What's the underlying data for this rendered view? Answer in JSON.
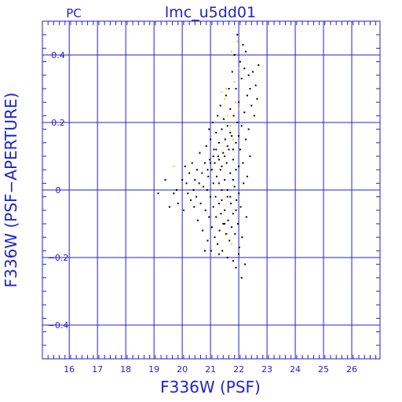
{
  "chart_data": {
    "type": "scatter",
    "title": "lmc_u5dd01",
    "corner_label": "PC",
    "xlabel": "F336W (PSF)",
    "ylabel": "F336W (PSF−APERTURE)",
    "xlim": [
      15.05,
      27.0
    ],
    "ylim": [
      -0.5,
      0.5
    ],
    "xticks": [
      16,
      17,
      18,
      19,
      20,
      21,
      22,
      23,
      24,
      25,
      26
    ],
    "yticks": [
      -0.4,
      -0.2,
      0,
      0.2,
      0.4
    ],
    "ytick_labels": [
      "−0.4",
      "−0.2",
      "0",
      "0.2",
      "0.4"
    ],
    "grid": true,
    "colors": {
      "axes": "#2222cc",
      "points": "#000000",
      "highlight": "#f0d000",
      "background": "#ffffff"
    },
    "series": [
      {
        "color": "#000000",
        "points": [
          [
            19.15,
            -0.01
          ],
          [
            19.4,
            0.03
          ],
          [
            19.55,
            -0.05
          ],
          [
            19.7,
            -0.01
          ],
          [
            19.8,
            0.0
          ],
          [
            19.85,
            -0.04
          ],
          [
            20.0,
            0.03
          ],
          [
            20.05,
            -0.06
          ],
          [
            20.1,
            0.07
          ],
          [
            20.15,
            0.02
          ],
          [
            20.2,
            -0.01
          ],
          [
            20.25,
            0.05
          ],
          [
            20.3,
            -0.03
          ],
          [
            20.35,
            0.08
          ],
          [
            20.4,
            0.0
          ],
          [
            20.42,
            -0.05
          ],
          [
            20.45,
            0.03
          ],
          [
            20.5,
            -0.02
          ],
          [
            20.52,
            0.06
          ],
          [
            20.55,
            -0.09
          ],
          [
            20.6,
            0.02
          ],
          [
            20.62,
            0.11
          ],
          [
            20.65,
            -0.04
          ],
          [
            20.7,
            0.05
          ],
          [
            20.72,
            -0.12
          ],
          [
            20.75,
            0.01
          ],
          [
            20.8,
            0.08
          ],
          [
            20.82,
            -0.06
          ],
          [
            20.85,
            0.13
          ],
          [
            20.88,
            0.0
          ],
          [
            20.9,
            -0.15
          ],
          [
            20.92,
            0.04
          ],
          [
            20.95,
            0.18
          ],
          [
            20.95,
            -0.08
          ],
          [
            20.97,
            0.09
          ],
          [
            21.0,
            -0.02
          ],
          [
            21.0,
            0.15
          ],
          [
            21.02,
            -0.18
          ],
          [
            21.05,
            0.06
          ],
          [
            21.05,
            -0.11
          ],
          [
            21.08,
            0.2
          ],
          [
            21.1,
            0.02
          ],
          [
            21.1,
            -0.05
          ],
          [
            21.12,
            0.12
          ],
          [
            21.15,
            -0.14
          ],
          [
            21.15,
            0.08
          ],
          [
            21.18,
            -0.02
          ],
          [
            21.2,
            0.17
          ],
          [
            21.2,
            -0.08
          ],
          [
            21.22,
            0.04
          ],
          [
            21.25,
            0.22
          ],
          [
            21.25,
            -0.16
          ],
          [
            21.27,
            0.1
          ],
          [
            21.3,
            -0.04
          ],
          [
            21.3,
            0.14
          ],
          [
            21.32,
            -0.12
          ],
          [
            21.35,
            0.06
          ],
          [
            21.35,
            0.25
          ],
          [
            21.37,
            -0.07
          ],
          [
            21.4,
            0.18
          ],
          [
            21.4,
            0.0
          ],
          [
            21.42,
            -0.18
          ],
          [
            21.45,
            0.11
          ],
          [
            21.45,
            -0.1
          ],
          [
            21.47,
            0.21
          ],
          [
            21.5,
            0.03
          ],
          [
            21.5,
            -0.06
          ],
          [
            21.52,
            0.15
          ],
          [
            21.55,
            0.28
          ],
          [
            21.55,
            -0.13
          ],
          [
            21.57,
            0.08
          ],
          [
            21.6,
            -0.02
          ],
          [
            21.6,
            0.19
          ],
          [
            21.62,
            -0.09
          ],
          [
            21.65,
            0.12
          ],
          [
            21.65,
            0.3
          ],
          [
            21.67,
            -0.15
          ],
          [
            21.7,
            0.05
          ],
          [
            21.7,
            0.24
          ],
          [
            21.72,
            -0.04
          ],
          [
            21.75,
            0.16
          ],
          [
            21.75,
            -0.11
          ],
          [
            21.77,
            0.35
          ],
          [
            21.8,
            0.09
          ],
          [
            21.8,
            -0.07
          ],
          [
            21.82,
            0.22
          ],
          [
            21.85,
            0.01
          ],
          [
            21.85,
            0.4
          ],
          [
            21.87,
            -0.13
          ],
          [
            21.9,
            0.14
          ],
          [
            21.9,
            0.3
          ],
          [
            21.92,
            -0.03
          ],
          [
            21.95,
            0.2
          ],
          [
            21.95,
            0.46
          ],
          [
            21.97,
            -0.1
          ],
          [
            22.0,
            0.07
          ],
          [
            22.0,
            0.26
          ],
          [
            22.02,
            -0.17
          ],
          [
            22.05,
            0.12
          ],
          [
            22.05,
            0.38
          ],
          [
            22.07,
            -0.05
          ],
          [
            22.1,
            0.19
          ],
          [
            22.1,
            0.33
          ],
          [
            22.12,
            -0.14
          ],
          [
            22.15,
            0.08
          ],
          [
            22.15,
            0.43
          ],
          [
            22.17,
            0.02
          ],
          [
            22.2,
            0.23
          ],
          [
            22.2,
            0.36
          ],
          [
            22.22,
            -0.22
          ],
          [
            22.25,
            0.15
          ],
          [
            22.25,
            0.41
          ],
          [
            22.27,
            -0.08
          ],
          [
            22.3,
            0.28
          ],
          [
            22.3,
            0.04
          ],
          [
            22.35,
            0.34
          ],
          [
            22.35,
            0.18
          ],
          [
            22.4,
            0.3
          ],
          [
            22.4,
            0.1
          ],
          [
            22.45,
            0.25
          ],
          [
            22.5,
            0.35
          ],
          [
            22.55,
            0.22
          ],
          [
            22.6,
            0.31
          ],
          [
            22.65,
            0.27
          ],
          [
            22.7,
            0.37
          ],
          [
            22.1,
            -0.26
          ],
          [
            21.9,
            -0.23
          ],
          [
            21.6,
            -0.2
          ],
          [
            21.3,
            -0.19
          ],
          [
            20.8,
            -0.18
          ],
          [
            21.8,
            -0.21
          ],
          [
            22.0,
            -0.19
          ],
          [
            21.4,
            0.07
          ],
          [
            21.5,
            0.1
          ],
          [
            21.6,
            0.13
          ],
          [
            21.7,
            0.17
          ],
          [
            21.8,
            0.12
          ],
          [
            21.9,
            0.06
          ],
          [
            22.0,
            0.16
          ],
          [
            21.3,
            0.09
          ],
          [
            21.2,
            0.12
          ],
          [
            21.1,
            0.1
          ],
          [
            21.0,
            0.08
          ],
          [
            20.9,
            0.06
          ],
          [
            21.6,
            0.0
          ],
          [
            21.7,
            -0.02
          ],
          [
            21.8,
            0.03
          ],
          [
            21.9,
            -0.06
          ],
          [
            22.0,
            -0.01
          ],
          [
            21.5,
            -0.1
          ],
          [
            21.4,
            -0.03
          ],
          [
            21.3,
            0.02
          ]
        ]
      },
      {
        "color": "#f0d000",
        "points": [
          [
            19.7,
            0.07
          ],
          [
            21.4,
            0.29
          ],
          [
            21.5,
            0.27
          ],
          [
            21.6,
            0.22
          ],
          [
            21.75,
            0.41
          ],
          [
            21.85,
            0.32
          ],
          [
            21.95,
            0.44
          ],
          [
            22.0,
            0.24
          ],
          [
            21.8,
            0.15
          ],
          [
            21.6,
            -0.13
          ],
          [
            21.75,
            -0.16
          ],
          [
            22.0,
            0.36
          ],
          [
            21.55,
            0.3
          ],
          [
            21.9,
            0.26
          ],
          [
            21.7,
            0.19
          ]
        ]
      }
    ]
  }
}
